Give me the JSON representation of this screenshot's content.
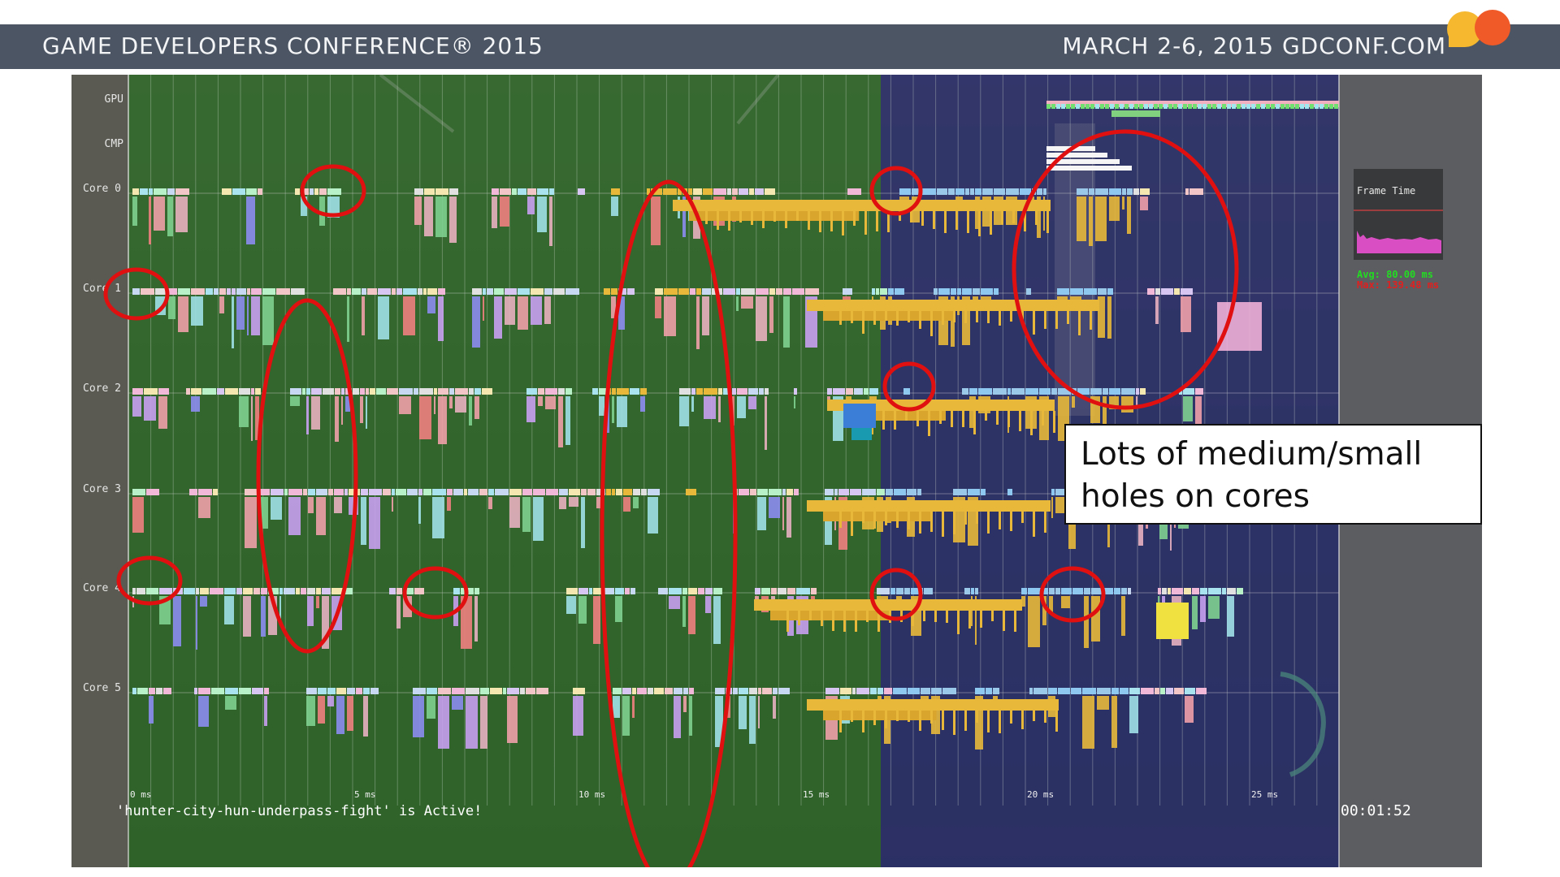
{
  "header": {
    "left_text": "GAME DEVELOPERS CONFERENCE® 2015",
    "right_text": "MARCH 2-6, 2015  GDCONF.COM",
    "bar_color": "#4b5563",
    "logo_colors": [
      "#f5b82e",
      "#ef5a28"
    ]
  },
  "profiler": {
    "row_labels": [
      "GPU",
      "CMP",
      "Core 0",
      "Core 1",
      "Core 2",
      "Core 3",
      "Core 4",
      "Core 5"
    ],
    "time_ticks": [
      "0 ms",
      "5 ms",
      "10 ms",
      "15 ms",
      "20 ms",
      "25 ms"
    ],
    "frame_time": {
      "title": "Frame Time",
      "avg": "Avg: 80.00 ms",
      "max": "Max: 139.48 ms",
      "graph_color": "#d94fc3"
    },
    "status_text": "'hunter-city-hun-underpass-fight' is Active!",
    "clock": "00:01:52",
    "overlay_colors": {
      "first_frame": "#2f6b2a",
      "second_frame": "#2c2f6e"
    },
    "annotation_color": "#e01010"
  },
  "callout": {
    "line1": "Lots of medium/small",
    "line2": "holes on cores"
  }
}
